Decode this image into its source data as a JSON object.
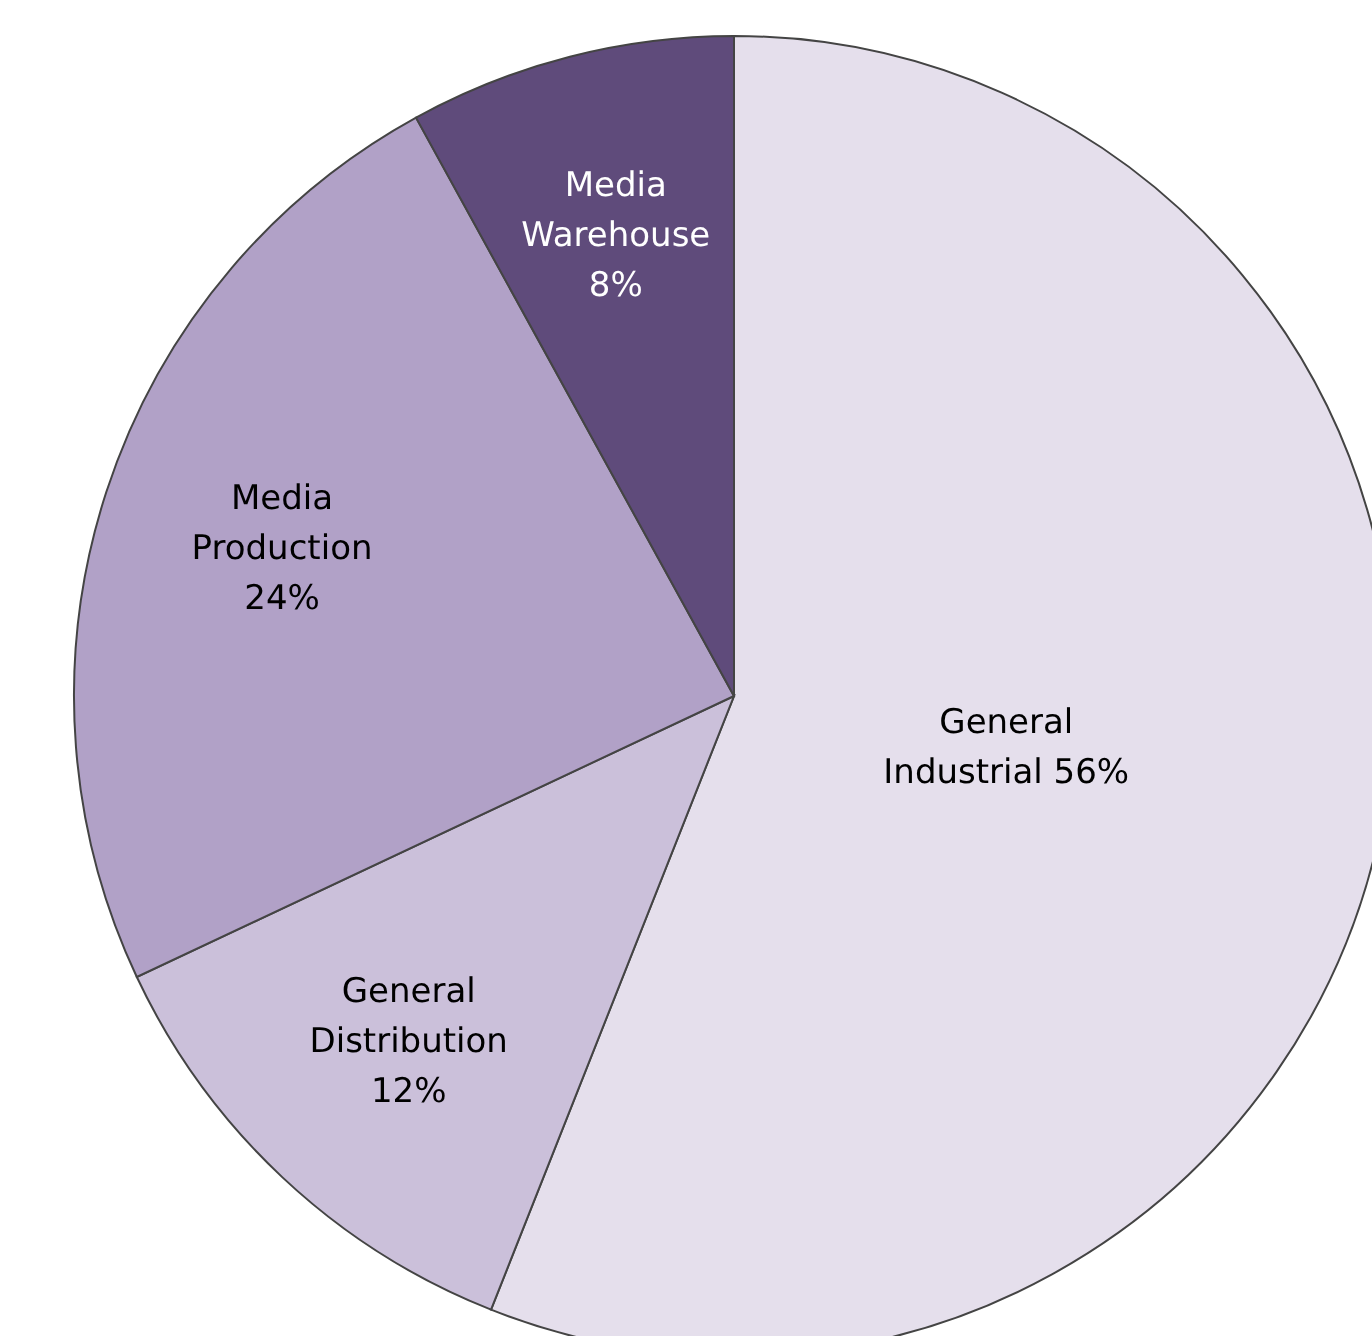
{
  "chart_data": {
    "type": "pie",
    "categories": [
      "General Industrial",
      "General Distribution",
      "Media Production",
      "Media Warehouse"
    ],
    "values": [
      56,
      12,
      24,
      8
    ],
    "value_labels": [
      "56%",
      "12%",
      "24%",
      "8%"
    ],
    "colors": [
      "#e5dfec",
      "#cbc0da",
      "#b1a1c7",
      "#5f4b7b"
    ]
  }
}
